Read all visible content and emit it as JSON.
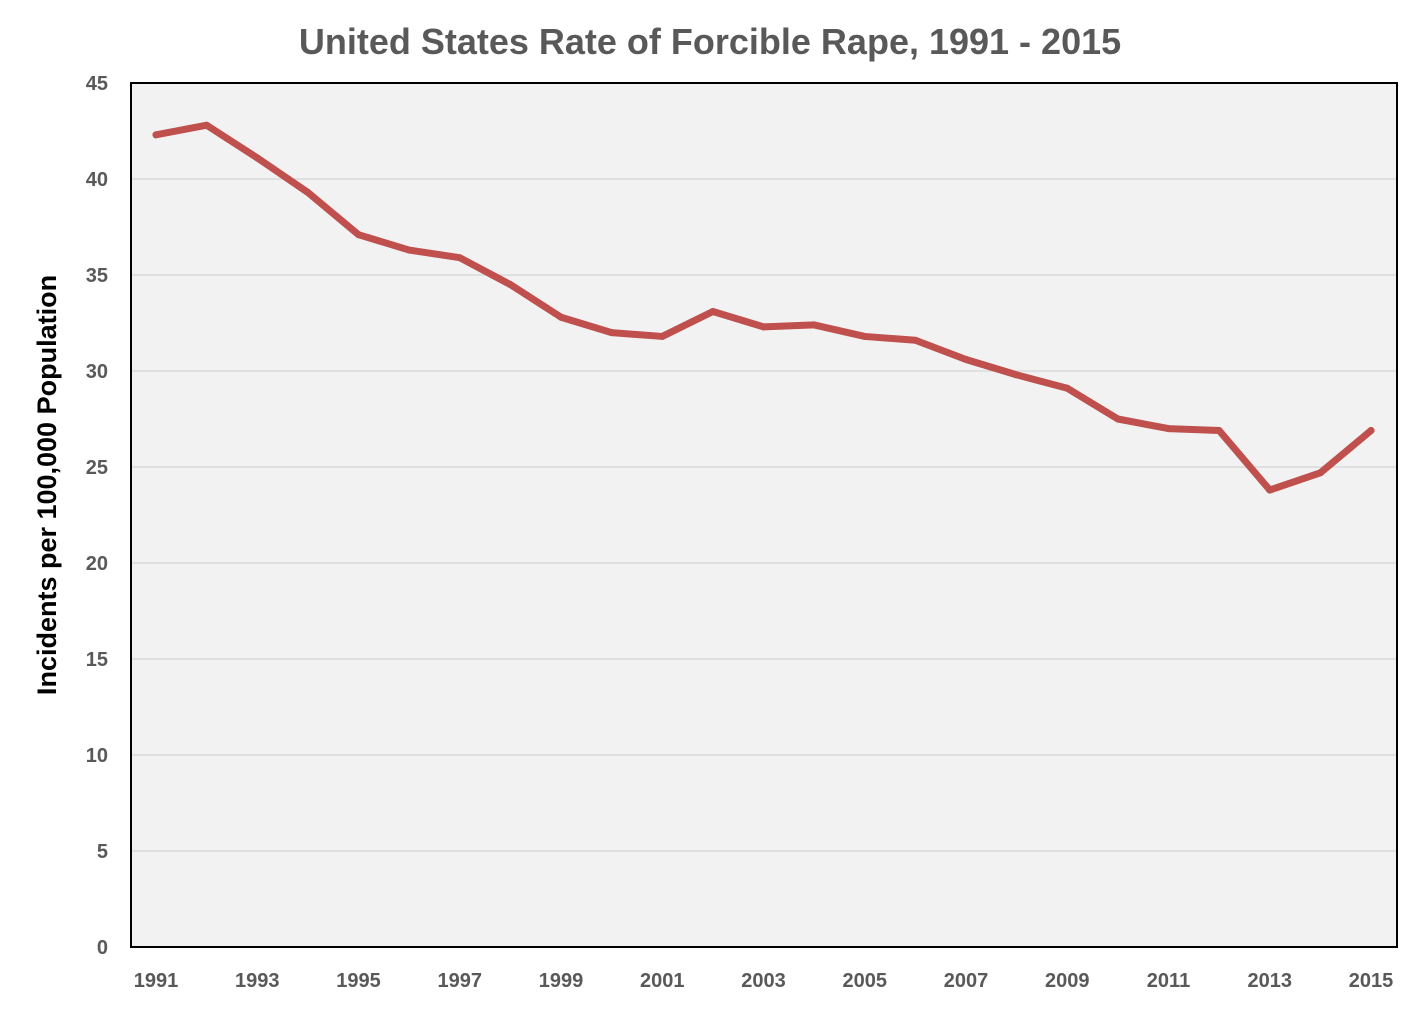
{
  "chart_data": {
    "type": "line",
    "title": "United States Rate of Forcible Rape, 1991 - 2015",
    "xlabel": "",
    "ylabel": "Incidents per 100,000 Population",
    "ylim": [
      0,
      45
    ],
    "yticks": [
      0,
      5,
      10,
      15,
      20,
      25,
      30,
      35,
      40,
      45
    ],
    "x": [
      1991,
      1992,
      1993,
      1994,
      1995,
      1996,
      1997,
      1998,
      1999,
      2000,
      2001,
      2002,
      2003,
      2004,
      2005,
      2006,
      2007,
      2008,
      2009,
      2010,
      2011,
      2012,
      2013,
      2014,
      2015
    ],
    "xtick_labels": [
      "1991",
      "1993",
      "1995",
      "1997",
      "1999",
      "2001",
      "2003",
      "2005",
      "2007",
      "2009",
      "2011",
      "2013",
      "2015"
    ],
    "grid": true,
    "legend": "none",
    "series": [
      {
        "name": "Rate of Forcible Rape",
        "color": "#c0504d",
        "values": [
          42.3,
          42.8,
          41.1,
          39.3,
          37.1,
          36.3,
          35.9,
          34.5,
          32.8,
          32.0,
          31.8,
          33.1,
          32.3,
          32.4,
          31.8,
          31.6,
          30.6,
          29.8,
          29.1,
          27.5,
          27.0,
          26.9,
          23.8,
          24.7,
          26.9
        ]
      }
    ],
    "plot_background": "#f2f2f2"
  }
}
